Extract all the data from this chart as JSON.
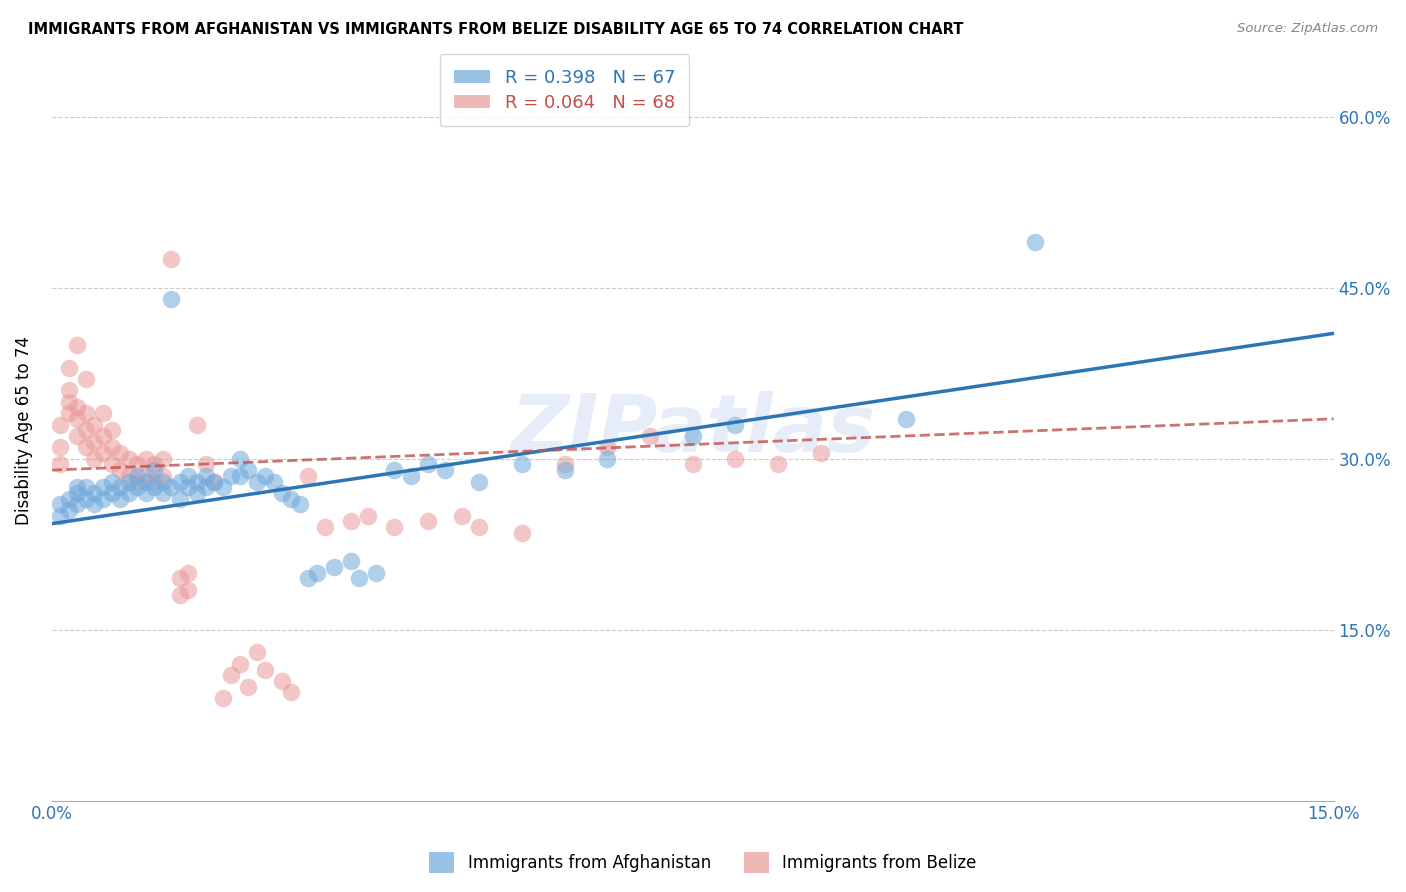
{
  "title": "IMMIGRANTS FROM AFGHANISTAN VS IMMIGRANTS FROM BELIZE DISABILITY AGE 65 TO 74 CORRELATION CHART",
  "source": "Source: ZipAtlas.com",
  "ylabel": "Disability Age 65 to 74",
  "xlim": [
    0.0,
    0.15
  ],
  "ylim": [
    0.0,
    0.65
  ],
  "yticks": [
    0.15,
    0.3,
    0.45,
    0.6
  ],
  "ytick_labels": [
    "15.0%",
    "30.0%",
    "45.0%",
    "60.0%"
  ],
  "xticks": [
    0.0,
    0.05,
    0.1,
    0.15
  ],
  "xtick_labels": [
    "0.0%",
    "",
    "",
    "15.0%"
  ],
  "afghanistan_color": "#6fa8dc",
  "belize_color": "#ea9999",
  "afghanistan_R": 0.398,
  "afghanistan_N": 67,
  "belize_R": 0.064,
  "belize_N": 68,
  "watermark": "ZIPatlas",
  "afghanistan_scatter": [
    [
      0.001,
      0.25
    ],
    [
      0.001,
      0.26
    ],
    [
      0.002,
      0.255
    ],
    [
      0.002,
      0.265
    ],
    [
      0.003,
      0.26
    ],
    [
      0.003,
      0.27
    ],
    [
      0.003,
      0.275
    ],
    [
      0.004,
      0.265
    ],
    [
      0.004,
      0.275
    ],
    [
      0.005,
      0.26
    ],
    [
      0.005,
      0.27
    ],
    [
      0.006,
      0.265
    ],
    [
      0.006,
      0.275
    ],
    [
      0.007,
      0.27
    ],
    [
      0.007,
      0.28
    ],
    [
      0.008,
      0.265
    ],
    [
      0.008,
      0.275
    ],
    [
      0.009,
      0.27
    ],
    [
      0.009,
      0.28
    ],
    [
      0.01,
      0.275
    ],
    [
      0.01,
      0.285
    ],
    [
      0.011,
      0.27
    ],
    [
      0.011,
      0.28
    ],
    [
      0.012,
      0.275
    ],
    [
      0.012,
      0.29
    ],
    [
      0.013,
      0.28
    ],
    [
      0.013,
      0.27
    ],
    [
      0.014,
      0.275
    ],
    [
      0.014,
      0.44
    ],
    [
      0.015,
      0.265
    ],
    [
      0.015,
      0.28
    ],
    [
      0.016,
      0.275
    ],
    [
      0.016,
      0.285
    ],
    [
      0.017,
      0.28
    ],
    [
      0.017,
      0.27
    ],
    [
      0.018,
      0.275
    ],
    [
      0.018,
      0.285
    ],
    [
      0.019,
      0.28
    ],
    [
      0.02,
      0.275
    ],
    [
      0.021,
      0.285
    ],
    [
      0.022,
      0.285
    ],
    [
      0.022,
      0.3
    ],
    [
      0.023,
      0.29
    ],
    [
      0.024,
      0.28
    ],
    [
      0.025,
      0.285
    ],
    [
      0.026,
      0.28
    ],
    [
      0.027,
      0.27
    ],
    [
      0.028,
      0.265
    ],
    [
      0.029,
      0.26
    ],
    [
      0.03,
      0.195
    ],
    [
      0.031,
      0.2
    ],
    [
      0.033,
      0.205
    ],
    [
      0.035,
      0.21
    ],
    [
      0.036,
      0.195
    ],
    [
      0.038,
      0.2
    ],
    [
      0.04,
      0.29
    ],
    [
      0.042,
      0.285
    ],
    [
      0.044,
      0.295
    ],
    [
      0.046,
      0.29
    ],
    [
      0.05,
      0.28
    ],
    [
      0.055,
      0.295
    ],
    [
      0.06,
      0.29
    ],
    [
      0.065,
      0.3
    ],
    [
      0.075,
      0.32
    ],
    [
      0.08,
      0.33
    ],
    [
      0.1,
      0.335
    ],
    [
      0.115,
      0.49
    ]
  ],
  "belize_scatter": [
    [
      0.001,
      0.295
    ],
    [
      0.001,
      0.31
    ],
    [
      0.001,
      0.33
    ],
    [
      0.002,
      0.34
    ],
    [
      0.002,
      0.35
    ],
    [
      0.002,
      0.36
    ],
    [
      0.002,
      0.38
    ],
    [
      0.003,
      0.32
    ],
    [
      0.003,
      0.335
    ],
    [
      0.003,
      0.345
    ],
    [
      0.003,
      0.4
    ],
    [
      0.004,
      0.31
    ],
    [
      0.004,
      0.325
    ],
    [
      0.004,
      0.34
    ],
    [
      0.004,
      0.37
    ],
    [
      0.005,
      0.3
    ],
    [
      0.005,
      0.315
    ],
    [
      0.005,
      0.33
    ],
    [
      0.006,
      0.305
    ],
    [
      0.006,
      0.32
    ],
    [
      0.006,
      0.34
    ],
    [
      0.007,
      0.295
    ],
    [
      0.007,
      0.31
    ],
    [
      0.007,
      0.325
    ],
    [
      0.008,
      0.29
    ],
    [
      0.008,
      0.305
    ],
    [
      0.009,
      0.285
    ],
    [
      0.009,
      0.3
    ],
    [
      0.01,
      0.28
    ],
    [
      0.01,
      0.295
    ],
    [
      0.011,
      0.285
    ],
    [
      0.011,
      0.3
    ],
    [
      0.012,
      0.28
    ],
    [
      0.012,
      0.295
    ],
    [
      0.013,
      0.285
    ],
    [
      0.013,
      0.3
    ],
    [
      0.014,
      0.475
    ],
    [
      0.015,
      0.18
    ],
    [
      0.015,
      0.195
    ],
    [
      0.016,
      0.185
    ],
    [
      0.016,
      0.2
    ],
    [
      0.017,
      0.33
    ],
    [
      0.018,
      0.295
    ],
    [
      0.019,
      0.28
    ],
    [
      0.02,
      0.09
    ],
    [
      0.021,
      0.11
    ],
    [
      0.022,
      0.12
    ],
    [
      0.023,
      0.1
    ],
    [
      0.024,
      0.13
    ],
    [
      0.025,
      0.115
    ],
    [
      0.027,
      0.105
    ],
    [
      0.028,
      0.095
    ],
    [
      0.03,
      0.285
    ],
    [
      0.032,
      0.24
    ],
    [
      0.035,
      0.245
    ],
    [
      0.037,
      0.25
    ],
    [
      0.04,
      0.24
    ],
    [
      0.044,
      0.245
    ],
    [
      0.048,
      0.25
    ],
    [
      0.05,
      0.24
    ],
    [
      0.055,
      0.235
    ],
    [
      0.06,
      0.295
    ],
    [
      0.065,
      0.31
    ],
    [
      0.07,
      0.32
    ],
    [
      0.075,
      0.295
    ],
    [
      0.08,
      0.3
    ],
    [
      0.085,
      0.295
    ],
    [
      0.09,
      0.305
    ]
  ],
  "afg_trendline_x": [
    0.0,
    0.15
  ],
  "afg_trendline_y": [
    0.243,
    0.41
  ],
  "bel_trendline_x": [
    0.0,
    0.15
  ],
  "bel_trendline_y": [
    0.29,
    0.335
  ]
}
